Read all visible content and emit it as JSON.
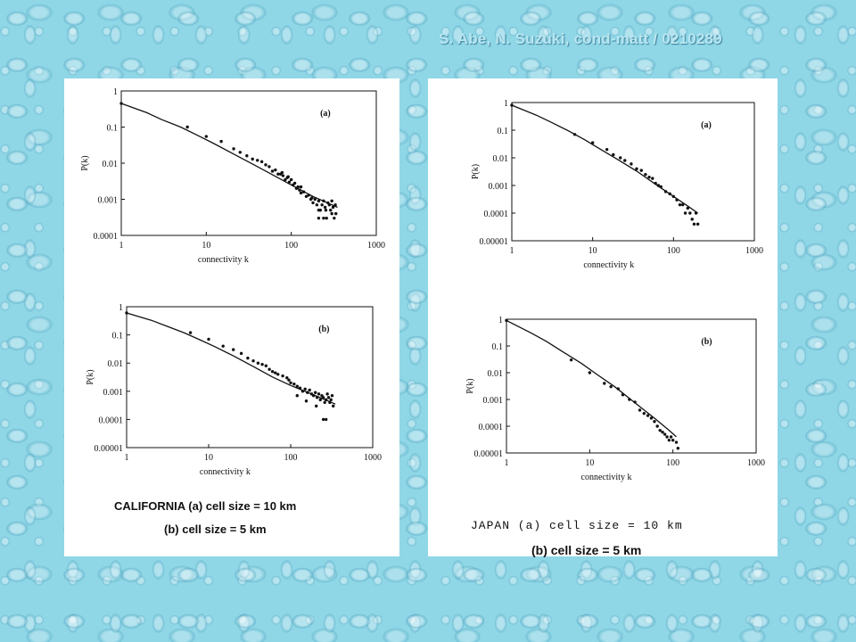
{
  "citation": "S. Abe, N. Suzuki, cond-matt / 0210289",
  "captions": {
    "california_line1": "CALIFORNIA   (a) cell size = 10 km",
    "california_line2": "(b) cell size = 5 km",
    "japan_line1": "JAPAN  (a) cell size = 10 km",
    "japan_line2": "(b) cell size = 5 km"
  },
  "chart_data": [
    {
      "id": "california-a",
      "type": "scatter",
      "label": "(a)",
      "xlabel": "connectivity k",
      "ylabel": "P(k)",
      "xscale": "log",
      "yscale": "log",
      "xlim": [
        1,
        1000
      ],
      "ylim": [
        0.0001,
        1
      ],
      "xticks": [
        "1",
        "10",
        "100",
        "1000"
      ],
      "yticks": [
        "1",
        "0.1",
        "0.01",
        "0.001",
        "0.0001"
      ],
      "fit_curve": [
        [
          1,
          0.45
        ],
        [
          2,
          0.25
        ],
        [
          3,
          0.16
        ],
        [
          5,
          0.1
        ],
        [
          8,
          0.058
        ],
        [
          12,
          0.036
        ],
        [
          20,
          0.019
        ],
        [
          35,
          0.0095
        ],
        [
          60,
          0.0048
        ],
        [
          100,
          0.0025
        ],
        [
          180,
          0.0012
        ],
        [
          350,
          0.0006
        ]
      ],
      "points": [
        [
          1,
          0.45
        ],
        [
          6,
          0.1
        ],
        [
          10,
          0.055
        ],
        [
          15,
          0.04
        ],
        [
          21,
          0.025
        ],
        [
          25,
          0.02
        ],
        [
          30,
          0.016
        ],
        [
          35,
          0.013
        ],
        [
          40,
          0.012
        ],
        [
          45,
          0.011
        ],
        [
          50,
          0.009
        ],
        [
          55,
          0.008
        ],
        [
          60,
          0.006
        ],
        [
          65,
          0.0065
        ],
        [
          70,
          0.005
        ],
        [
          75,
          0.005
        ],
        [
          80,
          0.0045
        ],
        [
          85,
          0.0035
        ],
        [
          90,
          0.004
        ],
        [
          95,
          0.003
        ],
        [
          100,
          0.0035
        ],
        [
          105,
          0.0025
        ],
        [
          110,
          0.0028
        ],
        [
          115,
          0.002
        ],
        [
          120,
          0.0022
        ],
        [
          125,
          0.0018
        ],
        [
          130,
          0.0015
        ],
        [
          140,
          0.0016
        ],
        [
          150,
          0.0012
        ],
        [
          160,
          0.0013
        ],
        [
          170,
          0.001
        ],
        [
          180,
          0.0008
        ],
        [
          190,
          0.001
        ],
        [
          200,
          0.0007
        ],
        [
          210,
          0.0009
        ],
        [
          220,
          0.0005
        ],
        [
          230,
          0.0007
        ],
        [
          240,
          0.0009
        ],
        [
          250,
          0.0006
        ],
        [
          260,
          0.0003
        ],
        [
          270,
          0.0008
        ],
        [
          280,
          0.0007
        ],
        [
          290,
          0.0005
        ],
        [
          300,
          0.0009
        ],
        [
          310,
          0.0006
        ],
        [
          320,
          0.0003
        ],
        [
          330,
          0.0007
        ],
        [
          78,
          0.0055
        ],
        [
          92,
          0.0042
        ],
        [
          130,
          0.0022
        ],
        [
          175,
          0.0011
        ],
        [
          210,
          0.0005
        ],
        [
          255,
          0.0005
        ],
        [
          300,
          0.0004
        ],
        [
          210,
          0.0003
        ],
        [
          240,
          0.0003
        ],
        [
          335,
          0.0004
        ]
      ]
    },
    {
      "id": "california-b",
      "type": "scatter",
      "label": "(b)",
      "xlabel": "connectivity k",
      "ylabel": "P(k)",
      "xscale": "log",
      "yscale": "log",
      "xlim": [
        1,
        1000
      ],
      "ylim": [
        1e-05,
        1
      ],
      "xticks": [
        "1",
        "10",
        "100",
        "1000"
      ],
      "yticks": [
        "1",
        "0.1",
        "0.01",
        "0.001",
        "0.0001",
        "0.00001"
      ],
      "fit_curve": [
        [
          1,
          0.6
        ],
        [
          2,
          0.33
        ],
        [
          3,
          0.21
        ],
        [
          5,
          0.12
        ],
        [
          8,
          0.065
        ],
        [
          12,
          0.038
        ],
        [
          20,
          0.018
        ],
        [
          35,
          0.0075
        ],
        [
          60,
          0.0032
        ],
        [
          100,
          0.0016
        ],
        [
          180,
          0.0008
        ],
        [
          350,
          0.00035
        ]
      ],
      "points": [
        [
          1,
          0.6
        ],
        [
          6,
          0.12
        ],
        [
          10,
          0.07
        ],
        [
          15,
          0.04
        ],
        [
          20,
          0.03
        ],
        [
          25,
          0.022
        ],
        [
          30,
          0.015
        ],
        [
          35,
          0.012
        ],
        [
          40,
          0.01
        ],
        [
          45,
          0.009
        ],
        [
          50,
          0.008
        ],
        [
          55,
          0.006
        ],
        [
          60,
          0.005
        ],
        [
          65,
          0.0045
        ],
        [
          70,
          0.004
        ],
        [
          80,
          0.0035
        ],
        [
          90,
          0.003
        ],
        [
          95,
          0.0025
        ],
        [
          100,
          0.002
        ],
        [
          110,
          0.0018
        ],
        [
          120,
          0.0015
        ],
        [
          130,
          0.0013
        ],
        [
          140,
          0.001
        ],
        [
          150,
          0.0012
        ],
        [
          160,
          0.0009
        ],
        [
          170,
          0.0011
        ],
        [
          180,
          0.0008
        ],
        [
          190,
          0.0007
        ],
        [
          200,
          0.0009
        ],
        [
          210,
          0.0006
        ],
        [
          220,
          0.0008
        ],
        [
          230,
          0.0005
        ],
        [
          240,
          0.0007
        ],
        [
          250,
          0.0006
        ],
        [
          260,
          0.0004
        ],
        [
          270,
          0.0005
        ],
        [
          280,
          0.0008
        ],
        [
          290,
          0.0006
        ],
        [
          300,
          0.0004
        ],
        [
          310,
          0.0005
        ],
        [
          320,
          0.0007
        ],
        [
          330,
          0.0003
        ],
        [
          250,
          0.0001
        ],
        [
          270,
          0.0001
        ],
        [
          205,
          0.0003
        ],
        [
          155,
          0.00045
        ],
        [
          120,
          0.0007
        ]
      ]
    },
    {
      "id": "japan-a",
      "type": "scatter",
      "label": "(a)",
      "xlabel": "connectivity k",
      "ylabel": "P(k)",
      "xscale": "log",
      "yscale": "log",
      "xlim": [
        1,
        1000
      ],
      "ylim": [
        1e-05,
        1
      ],
      "xticks": [
        "1",
        "10",
        "100",
        "1000"
      ],
      "yticks": [
        "1",
        "0.1",
        "0.01",
        "0.001",
        "0.0001",
        "0.00001"
      ],
      "fit_curve": [
        [
          1,
          0.8
        ],
        [
          2,
          0.35
        ],
        [
          3,
          0.2
        ],
        [
          5,
          0.095
        ],
        [
          8,
          0.045
        ],
        [
          12,
          0.022
        ],
        [
          20,
          0.009
        ],
        [
          35,
          0.0033
        ],
        [
          60,
          0.0011
        ],
        [
          100,
          0.0004
        ],
        [
          150,
          0.00018
        ],
        [
          200,
          0.0001
        ]
      ],
      "points": [
        [
          1,
          0.8
        ],
        [
          6,
          0.07
        ],
        [
          10,
          0.035
        ],
        [
          15,
          0.02
        ],
        [
          18,
          0.013
        ],
        [
          22,
          0.01
        ],
        [
          25,
          0.008
        ],
        [
          30,
          0.006
        ],
        [
          35,
          0.004
        ],
        [
          40,
          0.0035
        ],
        [
          45,
          0.0025
        ],
        [
          50,
          0.002
        ],
        [
          55,
          0.0018
        ],
        [
          60,
          0.0012
        ],
        [
          65,
          0.001
        ],
        [
          70,
          0.0009
        ],
        [
          80,
          0.0006
        ],
        [
          90,
          0.0005
        ],
        [
          100,
          0.0004
        ],
        [
          110,
          0.0003
        ],
        [
          120,
          0.0002
        ],
        [
          130,
          0.0002
        ],
        [
          140,
          0.0001
        ],
        [
          150,
          0.00015
        ],
        [
          160,
          0.0001
        ],
        [
          170,
          6e-05
        ],
        [
          180,
          4e-05
        ],
        [
          200,
          4e-05
        ],
        [
          190,
          0.0001
        ]
      ]
    },
    {
      "id": "japan-b",
      "type": "scatter",
      "label": "(b)",
      "xlabel": "connectivity k",
      "ylabel": "P(k)",
      "xscale": "log",
      "yscale": "log",
      "xlim": [
        1,
        1000
      ],
      "ylim": [
        1e-05,
        1
      ],
      "xticks": [
        "1",
        "10",
        "100",
        "1000"
      ],
      "yticks": [
        "1",
        "0.1",
        "0.01",
        "0.001",
        "0.0001",
        "0.00001"
      ],
      "fit_curve": [
        [
          1,
          0.9
        ],
        [
          2,
          0.3
        ],
        [
          3,
          0.15
        ],
        [
          5,
          0.055
        ],
        [
          8,
          0.022
        ],
        [
          12,
          0.009
        ],
        [
          20,
          0.003
        ],
        [
          35,
          0.00075
        ],
        [
          60,
          0.0002
        ],
        [
          90,
          7e-05
        ],
        [
          110,
          4e-05
        ]
      ],
      "points": [
        [
          1,
          0.9
        ],
        [
          6,
          0.03
        ],
        [
          10,
          0.01
        ],
        [
          15,
          0.004
        ],
        [
          18,
          0.003
        ],
        [
          22,
          0.0025
        ],
        [
          25,
          0.0015
        ],
        [
          30,
          0.001
        ],
        [
          35,
          0.0008
        ],
        [
          40,
          0.0004
        ],
        [
          45,
          0.0003
        ],
        [
          50,
          0.00025
        ],
        [
          55,
          0.0002
        ],
        [
          60,
          0.00015
        ],
        [
          65,
          0.0001
        ],
        [
          70,
          7e-05
        ],
        [
          75,
          6e-05
        ],
        [
          80,
          5e-05
        ],
        [
          85,
          4e-05
        ],
        [
          90,
          3e-05
        ],
        [
          95,
          4e-05
        ],
        [
          100,
          3e-05
        ],
        [
          110,
          2.5e-05
        ],
        [
          115,
          1.5e-05
        ]
      ]
    }
  ]
}
